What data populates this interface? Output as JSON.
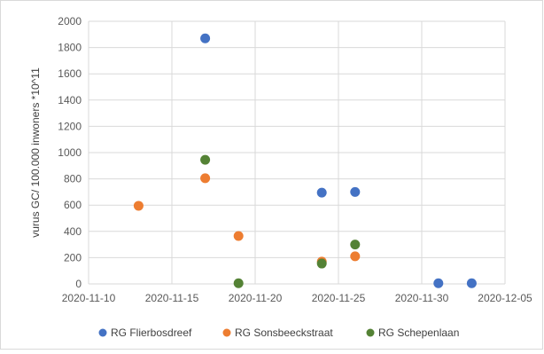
{
  "chart_data": {
    "type": "scatter",
    "title": "",
    "xlabel": "",
    "ylabel": "vurus GC/ 100.000 inwoners *10^11",
    "x_ticks": [
      "2020-11-10",
      "2020-11-15",
      "2020-11-20",
      "2020-11-25",
      "2020-11-30",
      "2020-12-05"
    ],
    "y_ticks": [
      "0",
      "200",
      "400",
      "600",
      "800",
      "1000",
      "1200",
      "1400",
      "1600",
      "1800",
      "2000"
    ],
    "xlim": [
      "2020-11-10",
      "2020-12-05"
    ],
    "ylim": [
      0,
      2000
    ],
    "grid": true,
    "legend_position": "bottom",
    "series": [
      {
        "name": "RG Flierbosdreef",
        "color": "#4472C4",
        "points": [
          {
            "x": "2020-11-17",
            "y": 1870
          },
          {
            "x": "2020-11-24",
            "y": 695
          },
          {
            "x": "2020-11-26",
            "y": 700
          },
          {
            "x": "2020-12-01",
            "y": 5
          },
          {
            "x": "2020-12-03",
            "y": 5
          }
        ]
      },
      {
        "name": "RG Sonsbeeckstraat",
        "color": "#ED7D31",
        "points": [
          {
            "x": "2020-11-13",
            "y": 595
          },
          {
            "x": "2020-11-17",
            "y": 805
          },
          {
            "x": "2020-11-19",
            "y": 365
          },
          {
            "x": "2020-11-24",
            "y": 170
          },
          {
            "x": "2020-11-26",
            "y": 210
          }
        ]
      },
      {
        "name": "RG Schepenlaan",
        "color": "#548235",
        "points": [
          {
            "x": "2020-11-17",
            "y": 945
          },
          {
            "x": "2020-11-19",
            "y": 5
          },
          {
            "x": "2020-11-24",
            "y": 155
          },
          {
            "x": "2020-11-26",
            "y": 300
          }
        ]
      }
    ]
  }
}
